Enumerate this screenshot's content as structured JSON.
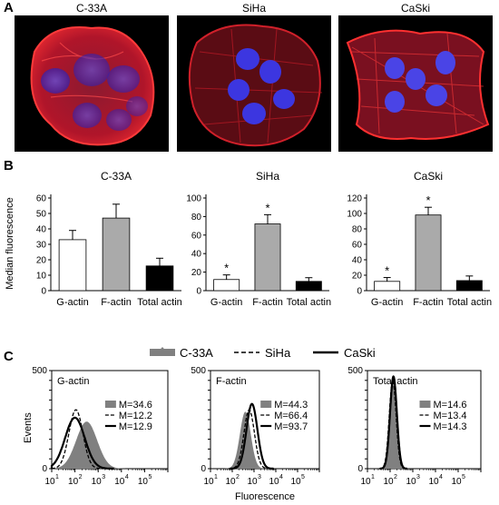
{
  "panel_a": {
    "letter": "A",
    "images": [
      {
        "title": "C-33A"
      },
      {
        "title": "SiHa"
      },
      {
        "title": "CaSki"
      }
    ],
    "colors": {
      "actin": "#e0202a",
      "nucleus": "#3a34d8",
      "background": "#000000"
    }
  },
  "panel_b": {
    "letter": "B",
    "ylabel": "Median fluorescence"
  },
  "panel_c": {
    "letter": "C",
    "legend": [
      {
        "label": "C-33A",
        "style": "filled-gray"
      },
      {
        "label": "SiHa",
        "style": "dashed"
      },
      {
        "label": "CaSki",
        "style": "solid-thick"
      }
    ],
    "ylabel": "Events",
    "xlabel": "Fluorescence"
  },
  "chart_data": [
    {
      "type": "bar",
      "title": "C-33A",
      "categories": [
        "G-actin",
        "F-actin",
        "Total actin"
      ],
      "values": [
        33,
        47,
        16
      ],
      "errors": [
        6,
        9,
        5
      ],
      "ylim": [
        0,
        60
      ],
      "yticks": [
        0,
        10,
        20,
        30,
        40,
        50,
        60
      ],
      "bar_colors": [
        "#ffffff",
        "#aaaaaa",
        "#000000"
      ],
      "stars": [
        false,
        false,
        false
      ]
    },
    {
      "type": "bar",
      "title": "SiHa",
      "categories": [
        "G-actin",
        "F-actin",
        "Total actin"
      ],
      "values": [
        12,
        72,
        10
      ],
      "errors": [
        5,
        10,
        4
      ],
      "ylim": [
        0,
        100
      ],
      "yticks": [
        0,
        20,
        40,
        60,
        80,
        100
      ],
      "bar_colors": [
        "#ffffff",
        "#aaaaaa",
        "#000000"
      ],
      "stars": [
        true,
        true,
        false
      ]
    },
    {
      "type": "bar",
      "title": "CaSki",
      "categories": [
        "G-actin",
        "F-actin",
        "Total actin"
      ],
      "values": [
        12,
        98,
        13
      ],
      "errors": [
        5,
        10,
        6
      ],
      "ylim": [
        0,
        120
      ],
      "yticks": [
        0,
        20,
        40,
        60,
        80,
        100,
        120
      ],
      "bar_colors": [
        "#ffffff",
        "#aaaaaa",
        "#000000"
      ],
      "stars": [
        true,
        true,
        false
      ]
    },
    {
      "type": "area",
      "title": "G-actin",
      "xscale": "log",
      "xlim": [
        1,
        100000
      ],
      "ylim": [
        0,
        500
      ],
      "yticks": [
        0,
        50,
        100,
        150,
        200,
        250,
        300,
        350,
        400,
        450,
        500
      ],
      "xticks": [
        "10",
        "1",
        "10",
        "2",
        "10",
        "3",
        "10",
        "4",
        "10",
        "5"
      ],
      "medians": [
        {
          "series": "C-33A",
          "label": "M=34.6"
        },
        {
          "series": "SiHa",
          "label": "M=12.2"
        },
        {
          "series": "CaSki",
          "label": "M=12.9"
        }
      ],
      "series": [
        {
          "name": "C-33A",
          "peak_x": 32,
          "peak_y": 240,
          "width": 0.45
        },
        {
          "name": "SiHa",
          "peak_x": 11,
          "peak_y": 300,
          "width": 0.3
        },
        {
          "name": "CaSki",
          "peak_x": 10,
          "peak_y": 260,
          "width": 0.42
        }
      ]
    },
    {
      "type": "area",
      "title": "F-actin",
      "xscale": "log",
      "xlim": [
        1,
        100000
      ],
      "ylim": [
        0,
        500
      ],
      "yticks": [
        0,
        50,
        100,
        150,
        200,
        250,
        300,
        350,
        400,
        450,
        500
      ],
      "xticks": [
        "10",
        "1",
        "10",
        "2",
        "10",
        "3",
        "10",
        "4",
        "10",
        "5"
      ],
      "medians": [
        {
          "series": "C-33A",
          "label": "M=44.3"
        },
        {
          "series": "SiHa",
          "label": "M=66.4"
        },
        {
          "series": "CaSki",
          "label": "M=93.7"
        }
      ],
      "series": [
        {
          "name": "C-33A",
          "peak_x": 40,
          "peak_y": 290,
          "width": 0.25
        },
        {
          "name": "SiHa",
          "peak_x": 60,
          "peak_y": 300,
          "width": 0.24
        },
        {
          "name": "CaSki",
          "peak_x": 80,
          "peak_y": 330,
          "width": 0.25
        }
      ]
    },
    {
      "type": "area",
      "title": "Total actin",
      "xscale": "log",
      "xlim": [
        1,
        100000
      ],
      "ylim": [
        0,
        500
      ],
      "yticks": [
        0,
        50,
        100,
        150,
        200,
        250,
        300,
        350,
        400,
        450,
        500
      ],
      "xticks": [
        "10",
        "1",
        "10",
        "2",
        "10",
        "3",
        "10",
        "4",
        "10",
        "5"
      ],
      "medians": [
        {
          "series": "C-33A",
          "label": "M=14.6"
        },
        {
          "series": "SiHa",
          "label": "M=13.4"
        },
        {
          "series": "CaSki",
          "label": "M=14.3"
        }
      ],
      "series": [
        {
          "name": "C-33A",
          "peak_x": 14,
          "peak_y": 430,
          "width": 0.16
        },
        {
          "name": "SiHa",
          "peak_x": 13,
          "peak_y": 450,
          "width": 0.15
        },
        {
          "name": "CaSki",
          "peak_x": 14,
          "peak_y": 470,
          "width": 0.15
        }
      ]
    }
  ]
}
